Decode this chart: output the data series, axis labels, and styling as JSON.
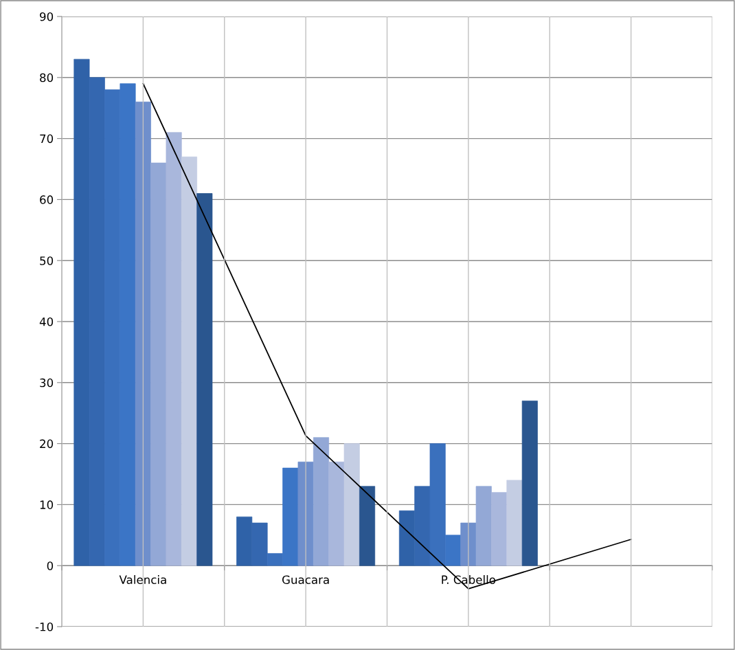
{
  "chart_data": {
    "type": "bar",
    "categories": [
      "Valencia",
      "Guacara",
      "P. Cabello",
      null
    ],
    "series": [
      {
        "color": "#2f62a8",
        "values": [
          83,
          8,
          9,
          null
        ]
      },
      {
        "color": "#3467b0",
        "values": [
          80,
          7,
          13,
          null
        ]
      },
      {
        "color": "#3a70bd",
        "values": [
          78,
          2,
          20,
          null
        ]
      },
      {
        "color": "#3b75c6",
        "values": [
          79,
          16,
          5,
          null
        ]
      },
      {
        "color": "#6f8fcc",
        "values": [
          76,
          17,
          7,
          null
        ]
      },
      {
        "color": "#93a8d6",
        "values": [
          66,
          21,
          13,
          null
        ]
      },
      {
        "color": "#a9b7dc",
        "values": [
          71,
          17,
          12,
          null
        ]
      },
      {
        "color": "#c4cde3",
        "values": [
          67,
          20,
          14,
          null
        ]
      },
      {
        "color": "#2a568f",
        "values": [
          61,
          13,
          27,
          null
        ]
      },
      {
        "type": "line",
        "color": "#000000",
        "values": [
          79,
          21.3,
          -3.8,
          4.3
        ]
      }
    ],
    "ylim": [
      -10,
      90
    ],
    "yticks": [
      -10,
      0,
      10,
      20,
      30,
      40,
      50,
      60,
      70,
      80,
      90
    ],
    "grid": true
  }
}
